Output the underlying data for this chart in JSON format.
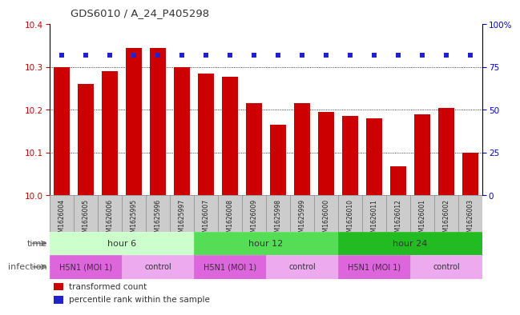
{
  "title": "GDS6010 / A_24_P405298",
  "samples": [
    "GSM1626004",
    "GSM1626005",
    "GSM1626006",
    "GSM1625995",
    "GSM1625996",
    "GSM1625997",
    "GSM1626007",
    "GSM1626008",
    "GSM1626009",
    "GSM1625998",
    "GSM1625999",
    "GSM1626000",
    "GSM1626010",
    "GSM1626011",
    "GSM1626012",
    "GSM1626001",
    "GSM1626002",
    "GSM1626003"
  ],
  "bar_values": [
    10.3,
    10.26,
    10.29,
    10.345,
    10.345,
    10.3,
    10.285,
    10.278,
    10.215,
    10.165,
    10.215,
    10.195,
    10.185,
    10.18,
    10.068,
    10.19,
    10.205,
    10.1
  ],
  "percentile_values": [
    82,
    82,
    82,
    82,
    82,
    82,
    82,
    82,
    82,
    82,
    82,
    82,
    82,
    82,
    82,
    82,
    82,
    82
  ],
  "ylim_left": [
    10.0,
    10.4
  ],
  "ylim_right": [
    0,
    100
  ],
  "yticks_left": [
    10.0,
    10.1,
    10.2,
    10.3,
    10.4
  ],
  "yticks_right": [
    0,
    25,
    50,
    75,
    100
  ],
  "ytick_labels_right": [
    "0",
    "25",
    "50",
    "75",
    "100%"
  ],
  "bar_color": "#cc0000",
  "percentile_color": "#2222cc",
  "time_colors": [
    "#ccffcc",
    "#55dd55",
    "#22bb22"
  ],
  "infection_colors_h5n1": "#dd66dd",
  "infection_colors_ctrl": "#eeaaee",
  "axis_label_color": "#cc0000",
  "right_axis_color": "#0000cc",
  "sample_bg_color": "#cccccc",
  "legend_bar": "transformed count",
  "legend_pct": "percentile rank within the sample"
}
